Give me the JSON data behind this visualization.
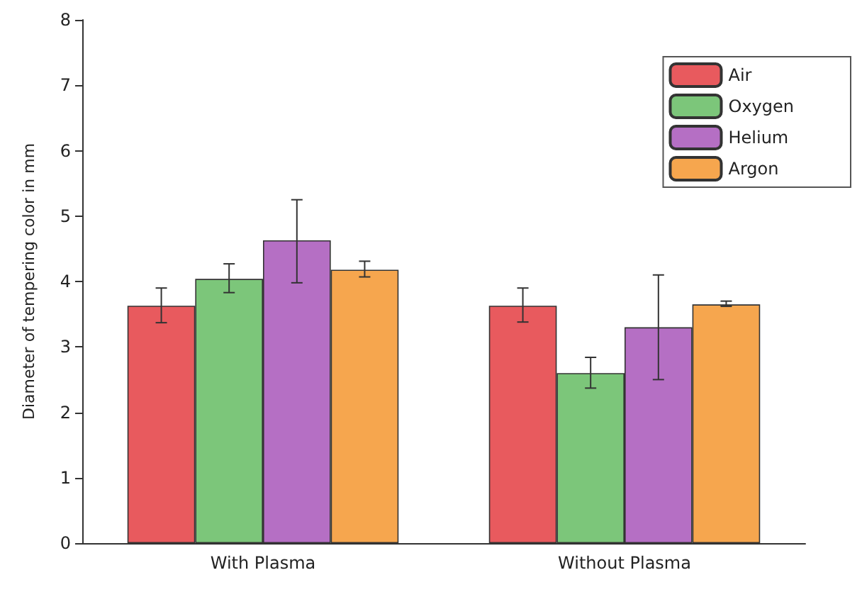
{
  "chart_data": {
    "type": "bar",
    "ylabel": "Diameter of tempering color in mm",
    "categories": [
      "With Plasma",
      "Without Plasma"
    ],
    "series": [
      {
        "name": "Air",
        "color": "#e85a5e",
        "values": [
          3.63,
          3.63
        ],
        "errors": [
          [
            3.37,
            3.9
          ],
          [
            3.38,
            3.9
          ]
        ]
      },
      {
        "name": "Oxygen",
        "color": "#7cc67a",
        "values": [
          4.04,
          2.6
        ],
        "errors": [
          [
            3.83,
            4.27
          ],
          [
            2.37,
            2.84
          ]
        ]
      },
      {
        "name": "Helium",
        "color": "#b56fc4",
        "values": [
          4.63,
          3.3
        ],
        "errors": [
          [
            3.98,
            5.25
          ],
          [
            2.5,
            4.1
          ]
        ]
      },
      {
        "name": "Argon",
        "color": "#f6a64e",
        "values": [
          4.18,
          3.65
        ],
        "errors": [
          [
            4.07,
            4.31
          ],
          [
            3.62,
            3.7
          ]
        ]
      }
    ],
    "ylim": [
      0,
      8
    ],
    "yticks": [
      0,
      1,
      2,
      3,
      4,
      5,
      6,
      7,
      8
    ],
    "grid": false,
    "legend": "top right"
  }
}
